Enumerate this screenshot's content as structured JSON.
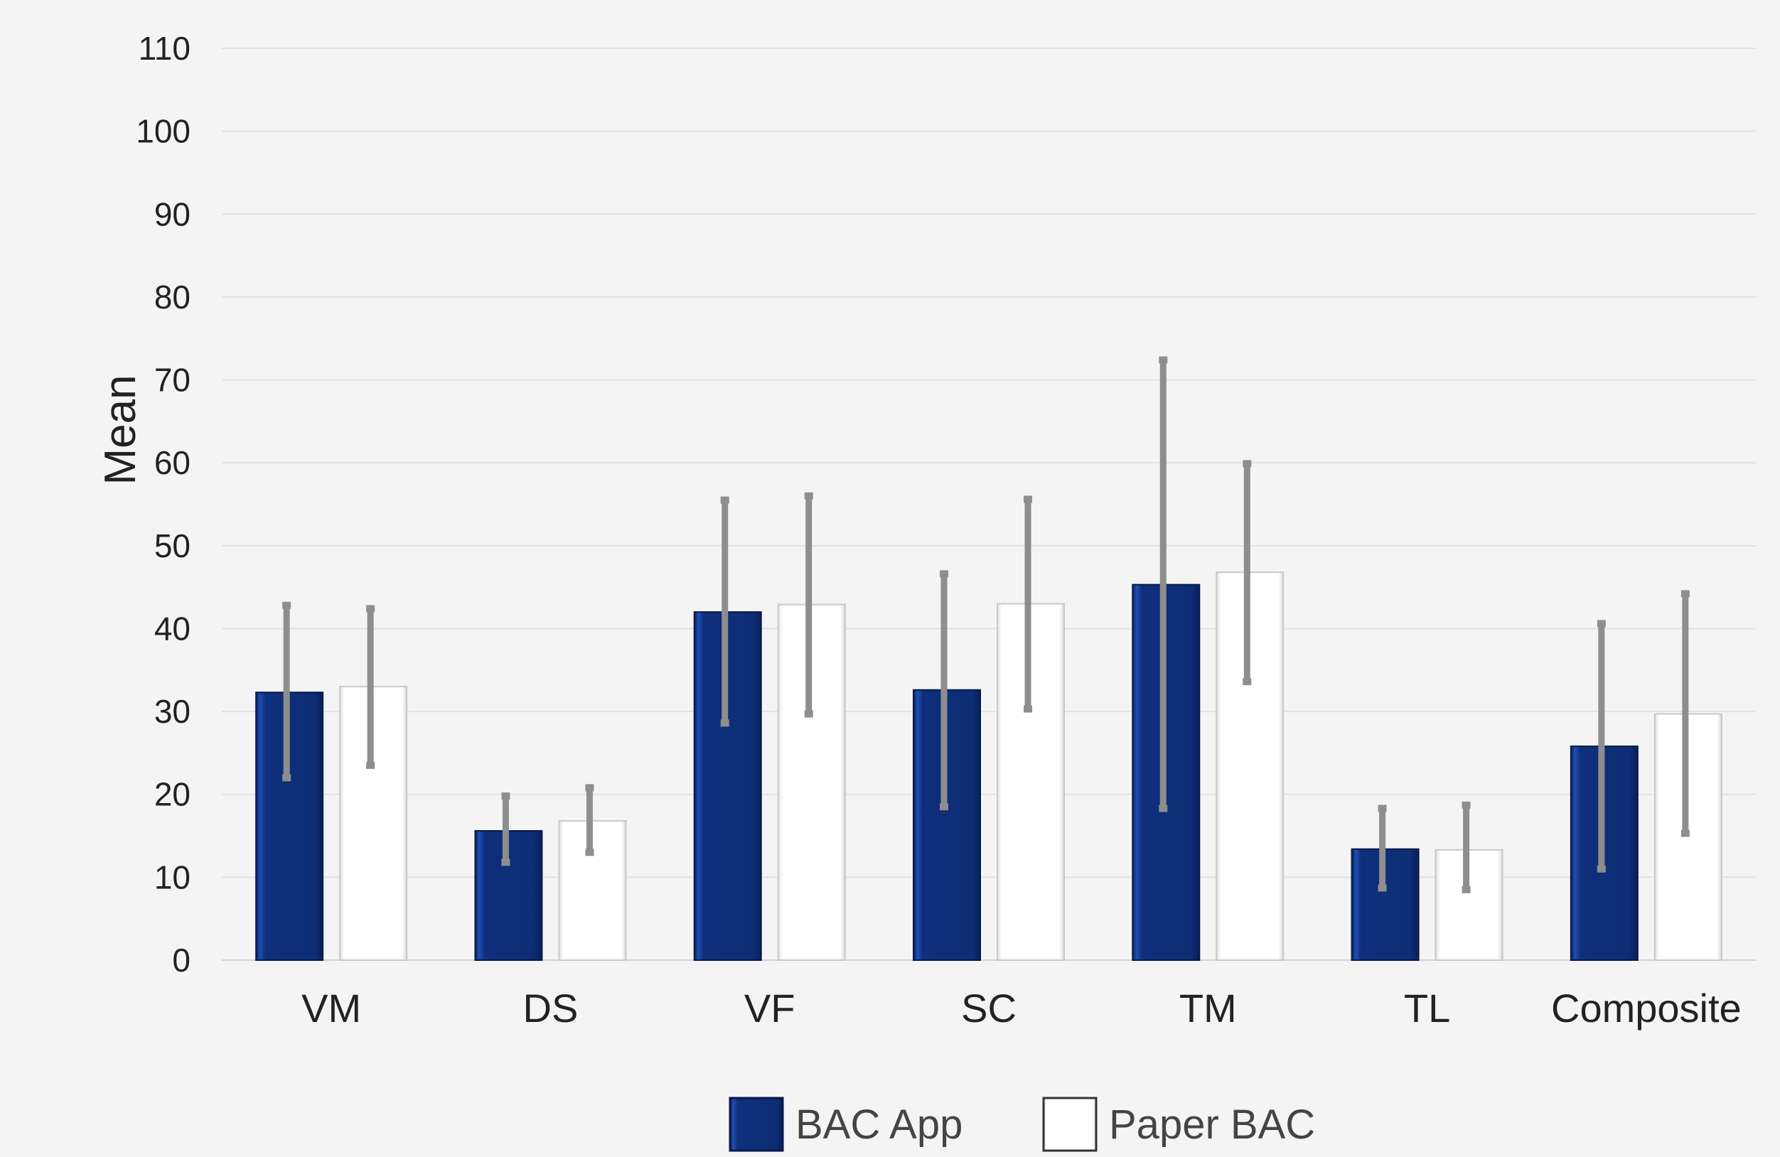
{
  "chart_data": {
    "type": "bar",
    "ylabel": "Mean",
    "ylim": [
      0,
      110
    ],
    "yticks": [
      0,
      10,
      20,
      30,
      40,
      50,
      60,
      70,
      80,
      90,
      100,
      110
    ],
    "grid": true,
    "legend_position": "bottom",
    "categories": [
      "VM",
      "DS",
      "VF",
      "SC",
      "TM",
      "TL",
      "Composite"
    ],
    "series": [
      {
        "name": "BAC App",
        "color": "#0d2d75",
        "values": [
          32.3,
          15.6,
          42.0,
          32.6,
          45.3,
          13.4,
          25.8
        ],
        "error_low": [
          22.0,
          11.8,
          28.6,
          18.5,
          18.3,
          8.7,
          11.0
        ],
        "error_high": [
          42.8,
          19.8,
          55.5,
          46.6,
          72.4,
          18.3,
          40.6
        ]
      },
      {
        "name": "Paper BAC",
        "color": "#ffffff",
        "values": [
          33.0,
          16.8,
          42.9,
          43.0,
          46.8,
          13.3,
          29.7
        ],
        "error_low": [
          23.5,
          13.0,
          29.7,
          30.3,
          33.6,
          8.5,
          15.3
        ],
        "error_high": [
          42.4,
          20.8,
          56.0,
          55.6,
          59.9,
          18.7,
          44.2
        ]
      }
    ]
  }
}
